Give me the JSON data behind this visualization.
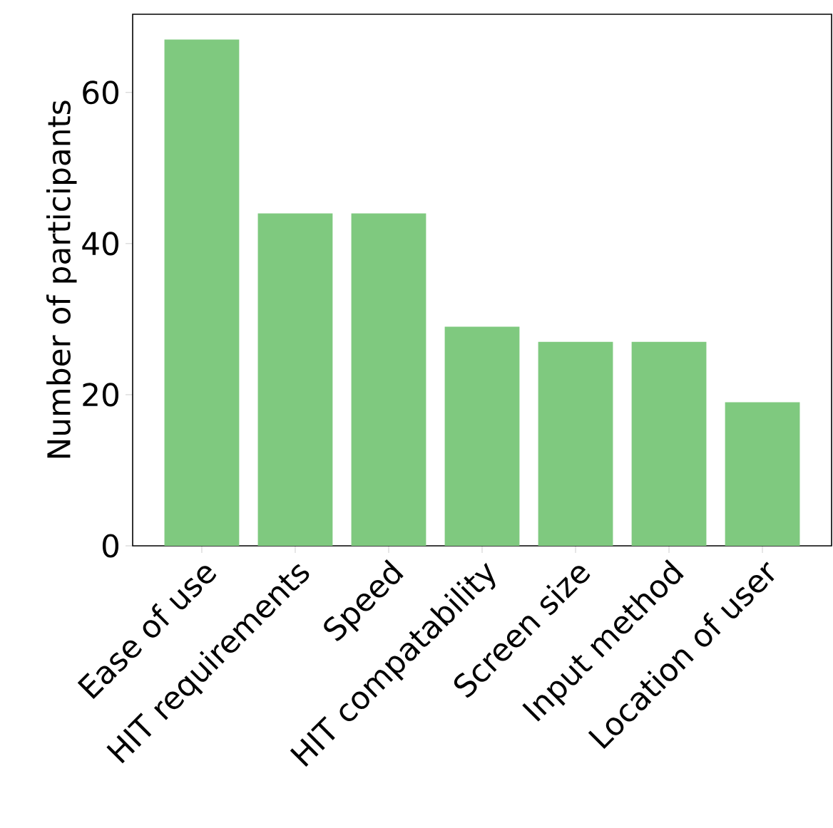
{
  "chart_data": {
    "type": "bar",
    "ylabel": "Number of participants",
    "categories": [
      "Ease of use",
      "HIT requirements",
      "Speed",
      "HIT compatability",
      "Screen size",
      "Input method",
      "Location of user"
    ],
    "values": [
      67,
      44,
      44,
      29,
      27,
      27,
      19
    ],
    "color": "#7fc97f",
    "ylim": [
      0,
      70.35
    ],
    "yticks": [
      0,
      20,
      40,
      60
    ]
  }
}
